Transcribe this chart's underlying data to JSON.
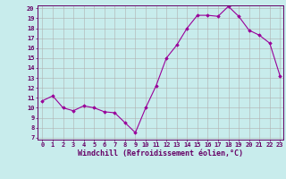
{
  "x": [
    0,
    1,
    2,
    3,
    4,
    5,
    6,
    7,
    8,
    9,
    10,
    11,
    12,
    13,
    14,
    15,
    16,
    17,
    18,
    19,
    20,
    21,
    22,
    23
  ],
  "y": [
    10.7,
    11.2,
    10.0,
    9.7,
    10.2,
    10.0,
    9.6,
    9.5,
    8.5,
    7.5,
    10.0,
    12.2,
    15.0,
    16.3,
    18.0,
    19.3,
    19.3,
    19.2,
    20.2,
    19.2,
    17.8,
    17.3,
    16.5,
    13.2
  ],
  "ylim_min": 7,
  "ylim_max": 20,
  "xlim_min": 0,
  "xlim_max": 23,
  "yticks": [
    7,
    8,
    9,
    10,
    11,
    12,
    13,
    14,
    15,
    16,
    17,
    18,
    19,
    20
  ],
  "xticks": [
    0,
    1,
    2,
    3,
    4,
    5,
    6,
    7,
    8,
    9,
    10,
    11,
    12,
    13,
    14,
    15,
    16,
    17,
    18,
    19,
    20,
    21,
    22,
    23
  ],
  "xlabel": "Windchill (Refroidissement éolien,°C)",
  "line_color": "#990099",
  "marker": "D",
  "marker_size": 1.8,
  "bg_color": "#c8ecec",
  "grid_color": "#b0b0b0",
  "tick_label_fontsize": 5.0,
  "xlabel_fontsize": 6.0,
  "linewidth": 0.8
}
